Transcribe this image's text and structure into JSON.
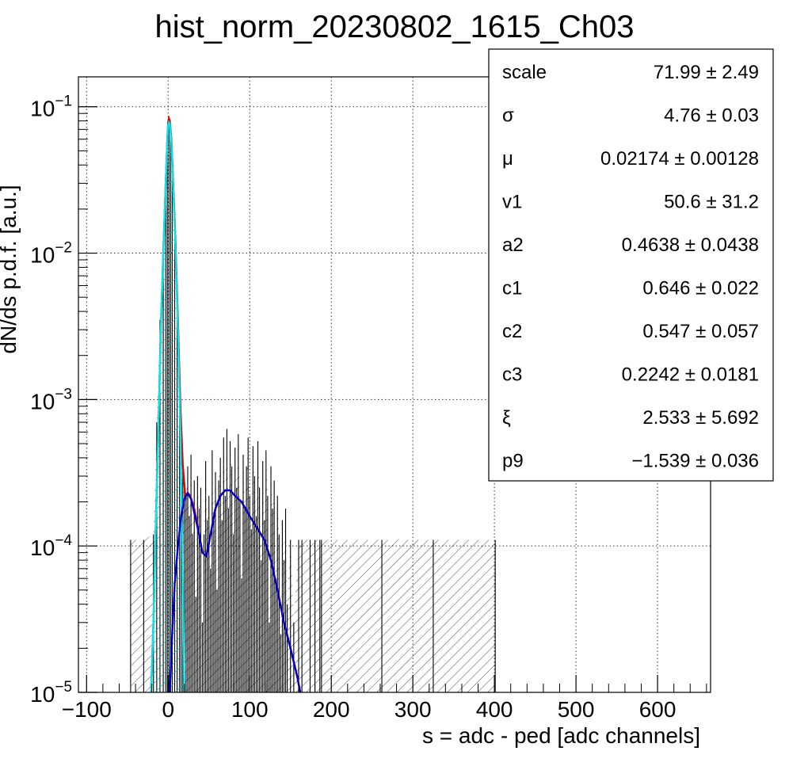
{
  "chart_data": {
    "type": "histogram",
    "title": "hist_norm_20230802_1615_Ch03",
    "xlabel": "s = adc - ped [adc channels]",
    "ylabel": "dN/ds p.d.f. [a.u.]",
    "xlim": [
      -110,
      665
    ],
    "ylim": [
      1e-05,
      0.16
    ],
    "yscale": "log",
    "grid": true,
    "x_ticks": [
      "−100",
      "0",
      "100",
      "200",
      "300",
      "400",
      "500",
      "600"
    ],
    "x_tick_values": [
      -100,
      0,
      100,
      200,
      300,
      400,
      500,
      600
    ],
    "y_ticks": [
      {
        "base": "10",
        "exp": "−1",
        "value": 0.1
      },
      {
        "base": "10",
        "exp": "−2",
        "value": 0.01
      },
      {
        "base": "10",
        "exp": "−3",
        "value": 0.001
      },
      {
        "base": "10",
        "exp": "−4",
        "value": 0.0001
      },
      {
        "base": "10",
        "exp": "−5",
        "value": 1e-05
      }
    ],
    "series": [
      {
        "kind": "histogram",
        "color": "#000000",
        "fill": "hatched",
        "points": [
          [
            -46,
            0.00011
          ],
          [
            -30,
            0.00011
          ],
          [
            -18,
            0.00012
          ],
          [
            -14,
            0.0007
          ],
          [
            -10,
            0.0035
          ],
          [
            -6,
            0.012
          ],
          [
            -3,
            0.035
          ],
          [
            -1,
            0.06
          ],
          [
            1,
            0.083
          ],
          [
            3,
            0.065
          ],
          [
            5,
            0.045
          ],
          [
            8,
            0.016
          ],
          [
            11,
            0.005
          ],
          [
            14,
            0.0015
          ],
          [
            16,
            0.0007
          ],
          [
            18,
            0.00038
          ],
          [
            20,
            0.00028
          ],
          [
            22,
            0.00022
          ],
          [
            24,
            0.00035
          ],
          [
            26,
            0.00016
          ],
          [
            28,
            0.00042
          ],
          [
            30,
            0.00012
          ],
          [
            32,
            0.00028
          ],
          [
            34,
            4.5e-05
          ],
          [
            36,
            0.0003
          ],
          [
            38,
            0.00018
          ],
          [
            40,
            0.00025
          ],
          [
            42,
            3e-05
          ],
          [
            44,
            0.00012
          ],
          [
            46,
            0.00038
          ],
          [
            48,
            0.00015
          ],
          [
            50,
            0.00022
          ],
          [
            52,
            7e-05
          ],
          [
            54,
            0.00045
          ],
          [
            56,
            0.00017
          ],
          [
            58,
            0.00032
          ],
          [
            60,
            5e-05
          ],
          [
            62,
            0.00028
          ],
          [
            64,
            0.0004
          ],
          [
            66,
            0.00015
          ],
          [
            68,
            0.00055
          ],
          [
            70,
            0.00022
          ],
          [
            72,
            0.00063
          ],
          [
            74,
            0.00018
          ],
          [
            76,
            0.00052
          ],
          [
            78,
            0.00035
          ],
          [
            80,
            0.00012
          ],
          [
            82,
            0.00047
          ],
          [
            84,
            0.00025
          ],
          [
            86,
            0.00058
          ],
          [
            88,
            0.0002
          ],
          [
            90,
            6e-05
          ],
          [
            92,
            0.00042
          ],
          [
            94,
            0.00018
          ],
          [
            96,
            0.00035
          ],
          [
            98,
            0.00055
          ],
          [
            100,
            0.00022
          ],
          [
            102,
            0.00013
          ],
          [
            104,
            0.00048
          ],
          [
            106,
            0.0003
          ],
          [
            108,
            0.00016
          ],
          [
            110,
            0.00052
          ],
          [
            112,
            0.00025
          ],
          [
            114,
            8e-05
          ],
          [
            116,
            0.00038
          ],
          [
            118,
            0.00015
          ],
          [
            120,
            0.00045
          ],
          [
            122,
            0.00022
          ],
          [
            124,
            3e-05
          ],
          [
            126,
            0.00035
          ],
          [
            128,
            0.00018
          ],
          [
            130,
            0.00028
          ],
          [
            132,
            6e-05
          ],
          [
            134,
            0.00022
          ],
          [
            136,
            0.00012
          ],
          [
            138,
            2.5e-05
          ],
          [
            140,
            0.00015
          ],
          [
            142,
            8e-05
          ],
          [
            144,
            0.00018
          ],
          [
            146,
            4e-05
          ],
          [
            150,
            0.00011
          ],
          [
            154,
            3e-05
          ],
          [
            160,
            0.00011
          ],
          [
            164,
            0.00011
          ],
          [
            174,
            0.00011
          ],
          [
            180,
            0.00011
          ],
          [
            186,
            0.00011
          ],
          [
            188,
            0.00011
          ],
          [
            262,
            0.00011
          ],
          [
            325,
            0.00011
          ],
          [
            401,
            0.00011
          ]
        ]
      },
      {
        "kind": "fit",
        "color": "#dd0000",
        "points": [
          [
            -21,
            1e-05
          ],
          [
            -18,
            3e-05
          ],
          [
            -15,
            0.00015
          ],
          [
            -12,
            0.0006
          ],
          [
            -9,
            0.003
          ],
          [
            -6,
            0.01
          ],
          [
            -3,
            0.03
          ],
          [
            -1,
            0.06
          ],
          [
            0,
            0.078
          ],
          [
            1,
            0.083
          ],
          [
            2,
            0.08
          ],
          [
            4,
            0.06
          ],
          [
            6,
            0.032
          ],
          [
            9,
            0.012
          ],
          [
            12,
            0.0035
          ],
          [
            15,
            0.0009
          ],
          [
            18,
            0.00035
          ],
          [
            21,
            0.00022
          ],
          [
            24,
            0.00023
          ],
          [
            27,
            0.00022
          ],
          [
            32,
            0.00018
          ],
          [
            38,
            0.00012
          ],
          [
            42,
            9e-05
          ],
          [
            47,
            8.5e-05
          ],
          [
            52,
            0.00012
          ],
          [
            58,
            0.00018
          ],
          [
            64,
            0.00022
          ],
          [
            70,
            0.00024
          ],
          [
            76,
            0.00024
          ],
          [
            82,
            0.00022
          ],
          [
            90,
            0.0002
          ],
          [
            100,
            0.00016
          ],
          [
            110,
            0.00013
          ],
          [
            118,
            0.00011
          ],
          [
            126,
            8e-05
          ],
          [
            134,
            5e-05
          ],
          [
            142,
            3e-05
          ],
          [
            150,
            2e-05
          ],
          [
            158,
            1.3e-05
          ],
          [
            162,
            1e-05
          ]
        ]
      },
      {
        "kind": "component",
        "color": "#00e5ee",
        "fill": "hatched",
        "points": [
          [
            -21,
            1e-05
          ],
          [
            -18,
            3e-05
          ],
          [
            -15,
            0.00015
          ],
          [
            -12,
            0.0006
          ],
          [
            -9,
            0.003
          ],
          [
            -6,
            0.01
          ],
          [
            -3,
            0.03
          ],
          [
            -1,
            0.06
          ],
          [
            0,
            0.075
          ],
          [
            1,
            0.078
          ],
          [
            2,
            0.076
          ],
          [
            4,
            0.058
          ],
          [
            6,
            0.03
          ],
          [
            9,
            0.011
          ],
          [
            12,
            0.003
          ],
          [
            15,
            0.0006
          ],
          [
            17,
            0.00012
          ],
          [
            19,
            2.2e-05
          ],
          [
            20,
            1e-05
          ]
        ]
      },
      {
        "kind": "component",
        "color": "#0000cc",
        "points": [
          [
            2,
            1e-05
          ],
          [
            5,
            2.5e-05
          ],
          [
            8,
            5.5e-05
          ],
          [
            12,
            0.0001
          ],
          [
            16,
            0.00016
          ],
          [
            20,
            0.00021
          ],
          [
            24,
            0.00023
          ],
          [
            28,
            0.00021
          ],
          [
            33,
            0.00016
          ],
          [
            38,
            0.00012
          ],
          [
            42,
            9e-05
          ],
          [
            47,
            8.5e-05
          ],
          [
            52,
            0.00012
          ],
          [
            58,
            0.00018
          ],
          [
            64,
            0.00022
          ],
          [
            70,
            0.00024
          ],
          [
            76,
            0.00024
          ],
          [
            82,
            0.00022
          ],
          [
            90,
            0.0002
          ],
          [
            100,
            0.00016
          ],
          [
            110,
            0.00013
          ],
          [
            118,
            0.00011
          ],
          [
            126,
            8e-05
          ],
          [
            134,
            5e-05
          ],
          [
            142,
            3e-05
          ],
          [
            150,
            2e-05
          ],
          [
            158,
            1.3e-05
          ],
          [
            162,
            1e-05
          ]
        ]
      }
    ]
  },
  "stats_box": {
    "rows": [
      {
        "name": "scale",
        "value": "71.99 ± 2.49"
      },
      {
        "name": "σ",
        "value": "4.76 ± 0.03"
      },
      {
        "name": "μ",
        "value": "0.02174 ± 0.00128"
      },
      {
        "name": "v1",
        "value": "50.6 ± 31.2"
      },
      {
        "name": "a2",
        "value": "0.4638 ± 0.0438"
      },
      {
        "name": "c1",
        "value": "0.646 ± 0.022"
      },
      {
        "name": "c2",
        "value": "0.547 ± 0.057"
      },
      {
        "name": "c3",
        "value": "0.2242 ± 0.0181"
      },
      {
        "name": "ξ",
        "value": "2.533 ± 5.692"
      },
      {
        "name": "p9",
        "value": "−1.539 ± 0.036"
      }
    ]
  }
}
